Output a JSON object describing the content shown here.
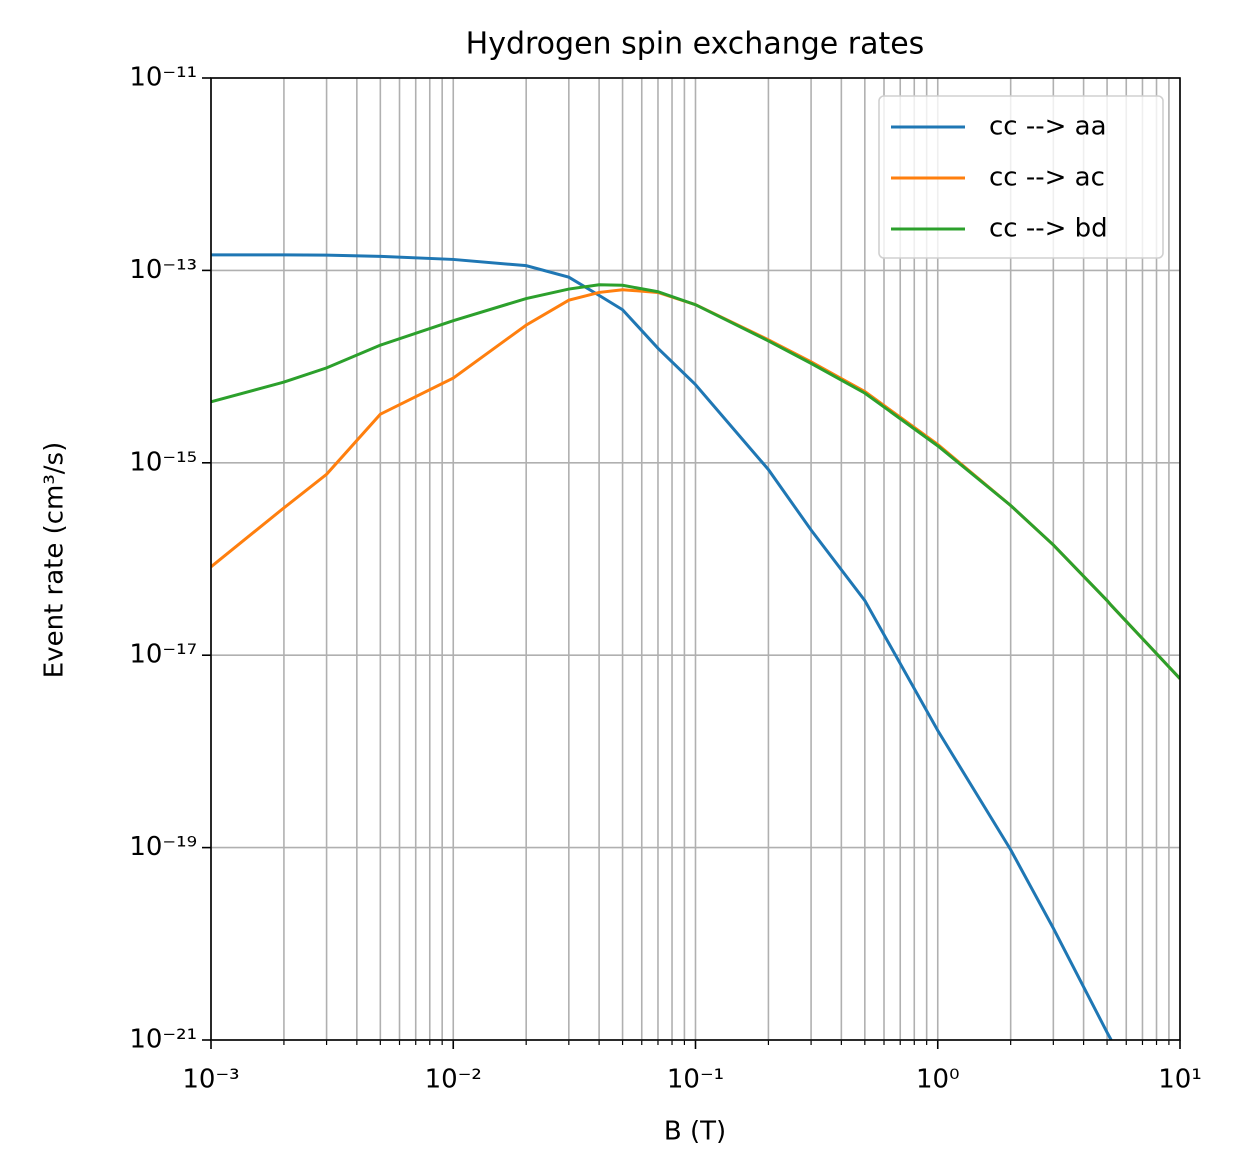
{
  "chart_data": {
    "type": "line",
    "title": "Hydrogen spin exchange rates",
    "xlabel": "B (T)",
    "ylabel": "Event rate (cm³/s)",
    "xscale": "log",
    "yscale": "log",
    "grid": true,
    "legend": "upper right",
    "xlim": [
      0.001,
      10
    ],
    "ylim": [
      1e-21,
      1e-11
    ],
    "xticks": [
      {
        "value": 0.001,
        "label": "10⁻³"
      },
      {
        "value": 0.01,
        "label": "10⁻²"
      },
      {
        "value": 0.1,
        "label": "10⁻¹"
      },
      {
        "value": 1,
        "label": "10⁰"
      },
      {
        "value": 10,
        "label": "10¹"
      }
    ],
    "xminorticks": [
      0.002,
      0.003,
      0.004,
      0.005,
      0.006,
      0.007,
      0.008,
      0.009,
      0.02,
      0.03,
      0.04,
      0.05,
      0.06,
      0.07,
      0.08,
      0.09,
      0.2,
      0.3,
      0.4,
      0.5,
      0.6,
      0.7,
      0.8,
      0.9,
      2,
      3,
      4,
      5,
      6,
      7,
      8,
      9
    ],
    "yticks": [
      {
        "value": 1e-21,
        "label": "10⁻²¹"
      },
      {
        "value": 1e-19,
        "label": "10⁻¹⁹"
      },
      {
        "value": 1e-17,
        "label": "10⁻¹⁷"
      },
      {
        "value": 1e-15,
        "label": "10⁻¹⁵"
      },
      {
        "value": 1e-13,
        "label": "10⁻¹³"
      },
      {
        "value": 1e-11,
        "label": "10⁻¹¹"
      }
    ],
    "x": [
      0.001,
      0.002,
      0.003,
      0.005,
      0.01,
      0.02,
      0.03,
      0.04,
      0.05,
      0.07,
      0.1,
      0.2,
      0.3,
      0.5,
      1,
      2,
      3,
      5,
      5.2,
      10
    ],
    "series": [
      {
        "name": "cc --> aa",
        "color": "#1f77b4",
        "values": [
          1.45e-13,
          1.45e-13,
          1.44e-13,
          1.4e-13,
          1.3e-13,
          1.12e-13,
          8.5e-14,
          5.5e-14,
          3.9e-14,
          1.55e-14,
          6.5e-15,
          8.5e-16,
          2e-16,
          3.7e-17,
          1.65e-18,
          9.5e-20,
          1.45e-20,
          1.2e-21,
          1e-21,
          null
        ]
      },
      {
        "name": "cc --> ac",
        "color": "#ff7f0e",
        "values": [
          8.3e-17,
          3.4e-16,
          7.6e-16,
          3.2e-15,
          7.6e-15,
          2.7e-14,
          4.9e-14,
          5.9e-14,
          6.3e-14,
          5.9e-14,
          4.4e-14,
          1.9e-14,
          1.12e-14,
          5.5e-15,
          1.55e-15,
          3.6e-16,
          1.4e-16,
          3.7e-17,
          3.3e-17,
          5.7e-18
        ]
      },
      {
        "name": "cc --> bd",
        "color": "#2ca02c",
        "values": [
          4.3e-15,
          6.9e-15,
          9.7e-15,
          1.67e-14,
          3e-14,
          5.1e-14,
          6.4e-14,
          7.1e-14,
          7e-14,
          6e-14,
          4.4e-14,
          1.85e-14,
          1.08e-14,
          5.3e-15,
          1.5e-15,
          3.6e-16,
          1.4e-16,
          3.7e-17,
          3.3e-17,
          5.7e-18
        ]
      }
    ]
  }
}
